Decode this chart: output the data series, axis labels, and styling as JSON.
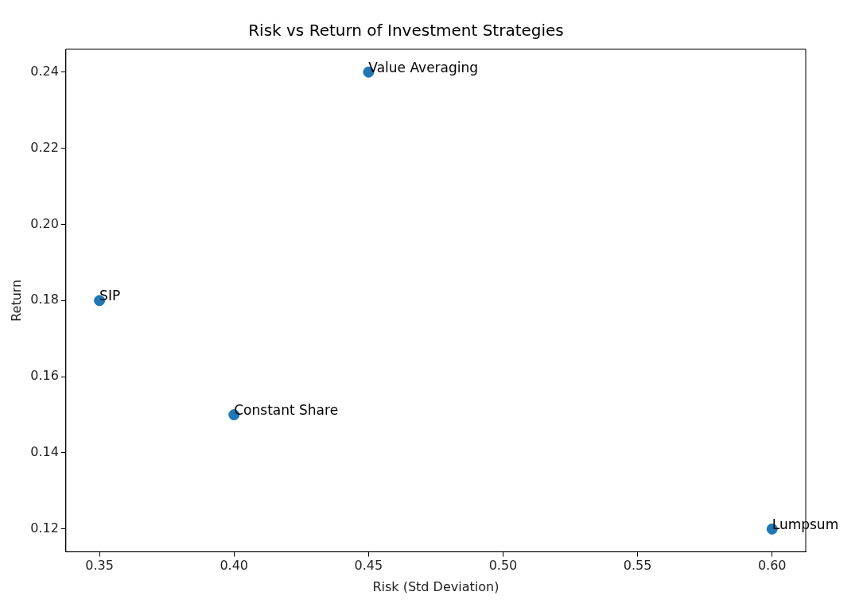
{
  "chart_data": {
    "type": "scatter",
    "title": "Risk vs Return of Investment Strategies",
    "xlabel": "Risk (Std Deviation)",
    "ylabel": "Return",
    "x": [
      0.35,
      0.4,
      0.45,
      0.6
    ],
    "series": [
      {
        "color": "#1f77b4",
        "values": [
          0.18,
          0.15,
          0.24,
          0.12
        ]
      }
    ],
    "annotations": [
      {
        "text": "SIP",
        "x": 0.35,
        "y": 0.18
      },
      {
        "text": "Constant Share",
        "x": 0.4,
        "y": 0.15
      },
      {
        "text": "Value Averaging",
        "x": 0.45,
        "y": 0.24
      },
      {
        "text": "Lumpsum",
        "x": 0.6,
        "y": 0.12
      }
    ],
    "xlim": [
      0.3375,
      0.6125
    ],
    "ylim": [
      0.114,
      0.246
    ],
    "xticks": [
      0.35,
      {
        "value": 0.4,
        "label": "0.40"
      },
      0.45,
      {
        "value": 0.5,
        "label": "0.50"
      },
      0.55,
      {
        "value": 0.6,
        "label": "0.60"
      }
    ],
    "yticks": [
      0.12,
      0.14,
      0.16,
      0.18,
      {
        "value": 0.2,
        "label": "0.20"
      },
      0.22,
      0.24
    ],
    "grid": false,
    "legend": false,
    "marker": "circle"
  }
}
